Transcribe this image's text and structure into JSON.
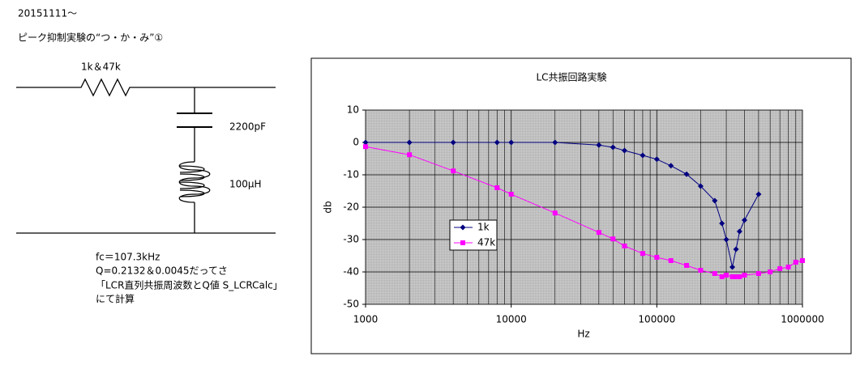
{
  "header": {
    "date": "20151111～",
    "title": "ピーク抑制実験の“つ・か・み”①"
  },
  "circuit": {
    "resistor_label": "1k＆47k",
    "capacitor_label": "2200pF",
    "inductor_label": "100μH"
  },
  "notes": [
    "fc＝107.3kHz",
    "Q=0.2132＆0.0045だってさ",
    "「LCR直列共振周波数とQ値 S_LCRCalc」",
    "にて計算"
  ],
  "chart_data": {
    "type": "line",
    "title": "LC共振回路実験",
    "xlabel": "Hz",
    "ylabel": "db",
    "xscale": "log",
    "grid": true,
    "legend": "center-left",
    "xlim": [
      1000,
      1000000
    ],
    "xticks": [
      1000,
      10000,
      100000,
      1000000
    ],
    "ylim": [
      -50,
      10
    ],
    "yticks": [
      10,
      0,
      -10,
      -20,
      -30,
      -40,
      -50
    ],
    "series": [
      {
        "name": "1k",
        "color": "#000080",
        "marker": "diamond",
        "x": [
          1000,
          2000,
          4000,
          8000,
          10000,
          20000,
          40000,
          50000,
          60000,
          80000,
          100000,
          125000,
          160000,
          200000,
          250000,
          280000,
          300000,
          330000,
          350000,
          370000,
          400000,
          500000
        ],
        "values": [
          0,
          0,
          0,
          0,
          0,
          0,
          -0.8,
          -1.5,
          -2.5,
          -4,
          -5.2,
          -7.2,
          -9.8,
          -13.5,
          -18,
          -25,
          -30,
          -38.5,
          -33,
          -27.5,
          -24,
          -16
        ]
      },
      {
        "name": "47k",
        "color": "#ff00ff",
        "marker": "square",
        "x": [
          1000,
          2000,
          4000,
          8000,
          10000,
          20000,
          40000,
          50000,
          60000,
          80000,
          100000,
          125000,
          160000,
          200000,
          250000,
          280000,
          300000,
          330000,
          350000,
          370000,
          400000,
          500000,
          600000,
          700000,
          800000,
          900000,
          1000000
        ],
        "values": [
          -1.3,
          -3.8,
          -8.8,
          -14,
          -16,
          -21.8,
          -27.8,
          -29.8,
          -32,
          -34.3,
          -35.5,
          -36.5,
          -38,
          -39.5,
          -40.5,
          -41.5,
          -41,
          -41.5,
          -41.5,
          -41.5,
          -41,
          -40.5,
          -40,
          -39,
          -38.5,
          -37,
          -36.5
        ]
      }
    ]
  }
}
